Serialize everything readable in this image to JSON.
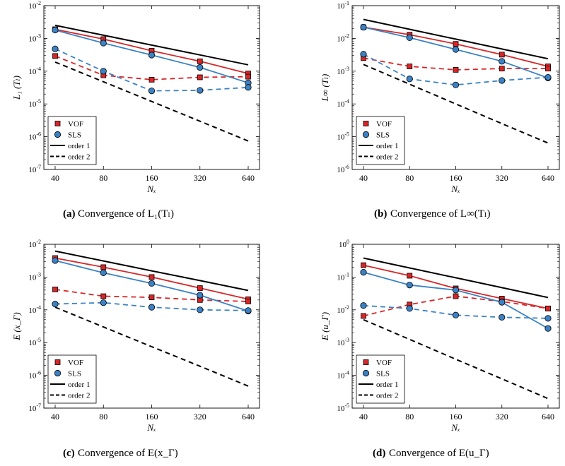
{
  "figure": {
    "legend_labels": [
      "VOF",
      "SLS",
      "order 1",
      "order 2"
    ],
    "colors": {
      "vof": "#d62728",
      "sls": "#3b82c4",
      "reference": "#000000"
    }
  },
  "panels": [
    {
      "caption_tag": "(a)",
      "caption_text": "Convergence of L₁(Tₗ)",
      "ylabel": "L₁ (Tₗ)",
      "xlabel": "Nₓ",
      "chart_data": {
        "type": "line",
        "x": [
          40,
          80,
          160,
          320,
          640
        ],
        "xscale": "log2",
        "yscale": "log",
        "ylim_exp": [
          -7,
          -2
        ],
        "grid": false,
        "legend_placement": "bottom-left",
        "series": [
          {
            "name": "VOF",
            "kind": "vof-solid",
            "values": [
              0.0019,
              0.00095,
              0.00042,
              0.0002,
              8.5e-05
            ]
          },
          {
            "name": "VOF",
            "kind": "vof-dashed",
            "values": [
              0.00029,
              7.5e-05,
              5.5e-05,
              6.5e-05,
              6.8e-05
            ]
          },
          {
            "name": "SLS",
            "kind": "sls-solid",
            "values": [
              0.0018,
              0.00072,
              0.00031,
              0.00013,
              4.4e-05
            ]
          },
          {
            "name": "SLS",
            "kind": "sls-dashed",
            "values": [
              0.00048,
              0.0001,
              2.5e-05,
              2.6e-05,
              3.2e-05
            ]
          },
          {
            "name": "order 1",
            "kind": "order1",
            "values": [
              0.0025,
              0.00125,
              0.000625,
              0.0003125,
              0.00015625
            ]
          },
          {
            "name": "order 2",
            "kind": "order2",
            "values": [
              0.00019,
              4.75e-05,
              1.19e-05,
              2.97e-06,
              7.4e-07
            ]
          }
        ]
      }
    },
    {
      "caption_tag": "(b)",
      "caption_text": "Convergence of L∞(Tₗ)",
      "ylabel": "L∞ (Tₗ)",
      "xlabel": "Nₓ",
      "chart_data": {
        "type": "line",
        "x": [
          40,
          80,
          160,
          320,
          640
        ],
        "xscale": "log2",
        "yscale": "log",
        "ylim_exp": [
          -6,
          -1
        ],
        "grid": false,
        "legend_placement": "bottom-left",
        "series": [
          {
            "name": "VOF",
            "kind": "vof-solid",
            "values": [
              0.022,
              0.013,
              0.0068,
              0.0032,
              0.0014
            ]
          },
          {
            "name": "VOF",
            "kind": "vof-dashed",
            "values": [
              0.0025,
              0.0014,
              0.0011,
              0.0012,
              0.0012
            ]
          },
          {
            "name": "SLS",
            "kind": "sls-solid",
            "values": [
              0.022,
              0.0105,
              0.0046,
              0.002,
              0.00062
            ]
          },
          {
            "name": "SLS",
            "kind": "sls-dashed",
            "values": [
              0.0033,
              0.00058,
              0.00038,
              0.00052,
              0.00065
            ]
          },
          {
            "name": "order 1",
            "kind": "order1",
            "values": [
              0.038,
              0.019,
              0.0095,
              0.00475,
              0.0024
            ]
          },
          {
            "name": "order 2",
            "kind": "order2",
            "values": [
              0.0016,
              0.0004,
              0.0001,
              2.5e-05,
              6.4e-06
            ]
          }
        ]
      }
    },
    {
      "caption_tag": "(c)",
      "caption_text": "Convergence of E(x_Γ)",
      "ylabel": "E (x_Γ)",
      "xlabel": "Nₓ",
      "chart_data": {
        "type": "line",
        "x": [
          40,
          80,
          160,
          320,
          640
        ],
        "xscale": "log2",
        "yscale": "log",
        "ylim_exp": [
          -7,
          -2
        ],
        "grid": false,
        "legend_placement": "bottom-left",
        "series": [
          {
            "name": "VOF",
            "kind": "vof-solid",
            "values": [
              0.0038,
              0.002,
              0.001,
              0.00046,
              0.00021
            ]
          },
          {
            "name": "VOF",
            "kind": "vof-dashed",
            "values": [
              0.00042,
              0.00026,
              0.00024,
              0.0002,
              0.00018
            ]
          },
          {
            "name": "SLS",
            "kind": "sls-solid",
            "values": [
              0.0032,
              0.00135,
              0.00064,
              0.00028,
              9.2e-05
            ]
          },
          {
            "name": "SLS",
            "kind": "sls-dashed",
            "values": [
              0.00015,
              0.000165,
              0.00012,
              0.0001,
              9.5e-05
            ]
          },
          {
            "name": "order 1",
            "kind": "order1",
            "values": [
              0.0062,
              0.0031,
              0.00155,
              0.00078,
              0.00039
            ]
          },
          {
            "name": "order 2",
            "kind": "order2",
            "values": [
              0.00012,
              3e-05,
              7.5e-06,
              1.9e-06,
              4.7e-07
            ]
          }
        ]
      }
    },
    {
      "caption_tag": "(d)",
      "caption_text": "Convergence of E(u_Γ)",
      "ylabel": "E (u_Γ)",
      "xlabel": "Nₓ",
      "chart_data": {
        "type": "line",
        "x": [
          40,
          80,
          160,
          320,
          640
        ],
        "xscale": "log2",
        "yscale": "log",
        "ylim_exp": [
          -5,
          0
        ],
        "grid": false,
        "legend_placement": "bottom-left",
        "series": [
          {
            "name": "VOF",
            "kind": "vof-solid",
            "values": [
              0.23,
              0.11,
              0.045,
              0.022,
              0.011
            ]
          },
          {
            "name": "VOF",
            "kind": "vof-dashed",
            "values": [
              0.0065,
              0.0145,
              0.026,
              0.018,
              0.011
            ]
          },
          {
            "name": "SLS",
            "kind": "sls-solid",
            "values": [
              0.14,
              0.057,
              0.04,
              0.017,
              0.0027
            ]
          },
          {
            "name": "SLS",
            "kind": "sls-dashed",
            "values": [
              0.0135,
              0.011,
              0.0069,
              0.0059,
              0.0055
            ]
          },
          {
            "name": "order 1",
            "kind": "order1",
            "values": [
              0.38,
              0.19,
              0.095,
              0.0475,
              0.0237
            ]
          },
          {
            "name": "order 2",
            "kind": "order2",
            "values": [
              0.005,
              0.00125,
              0.00031,
              7.8e-05,
              1.95e-05
            ]
          }
        ]
      }
    }
  ]
}
